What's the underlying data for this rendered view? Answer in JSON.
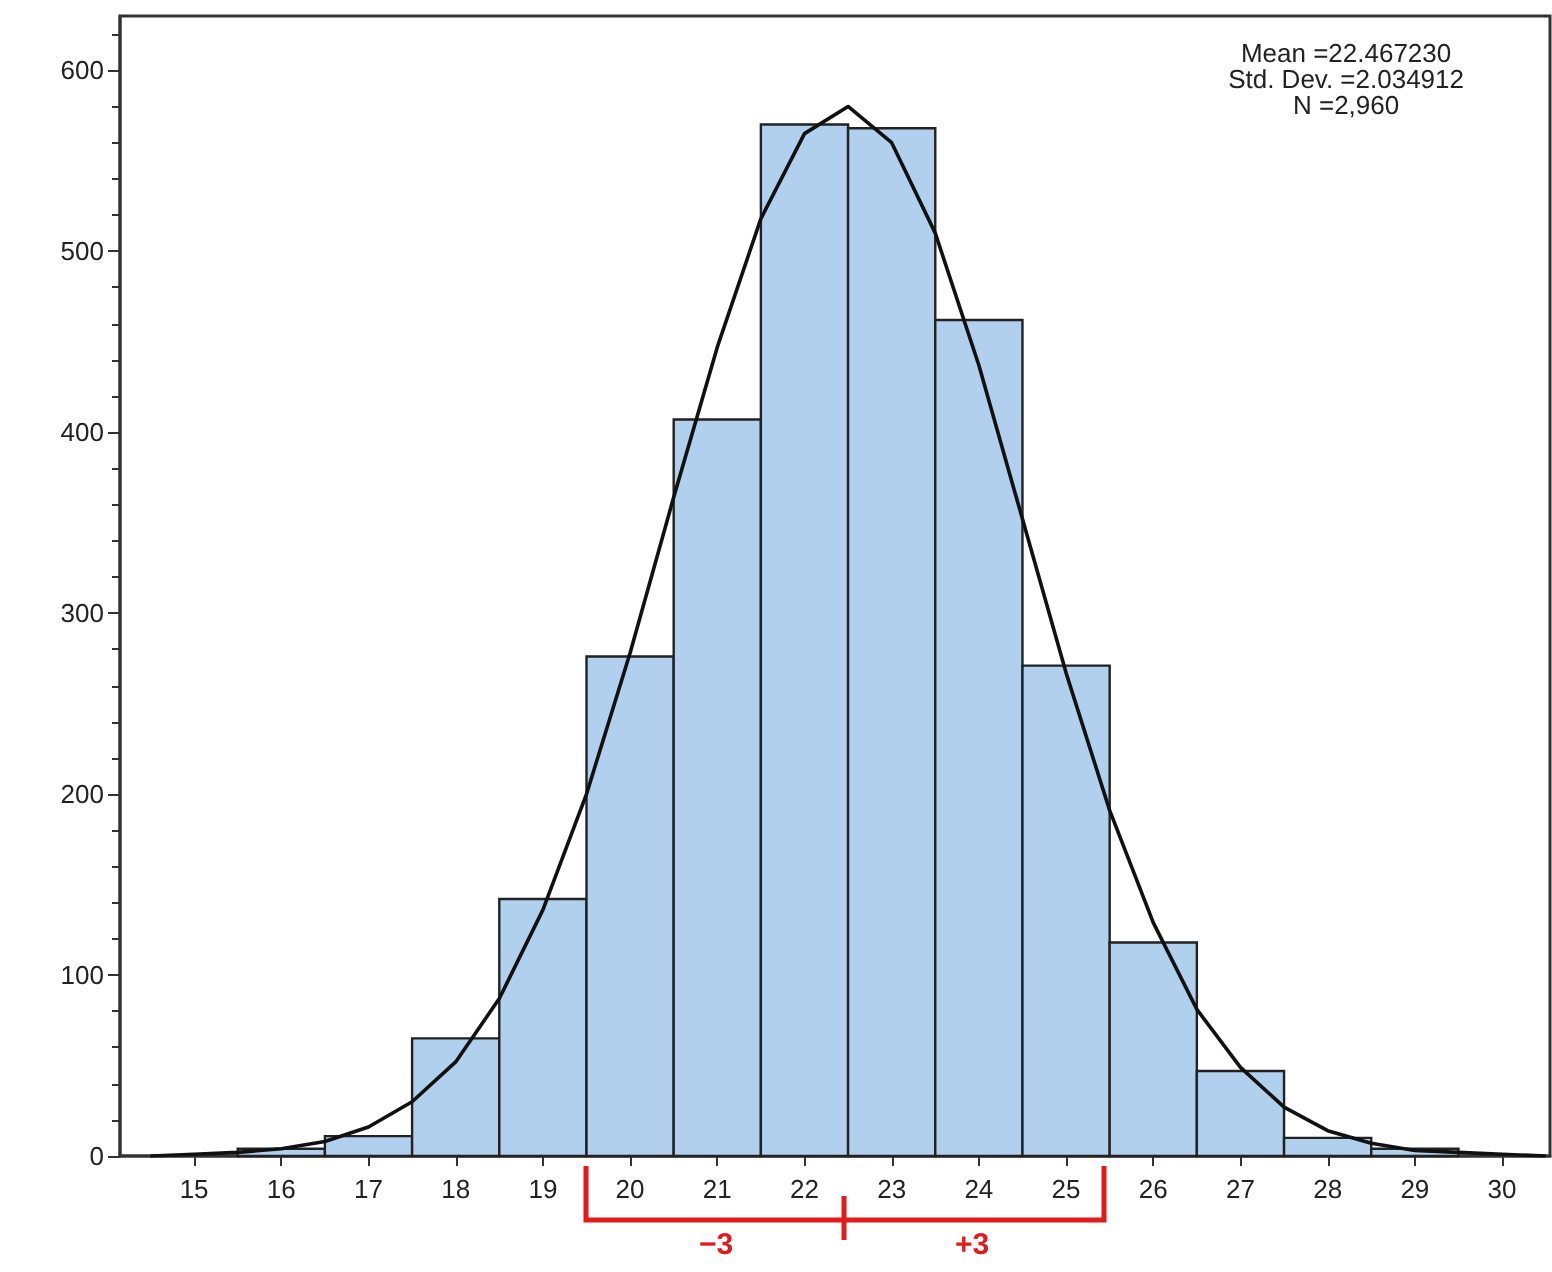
{
  "chart_data": {
    "type": "histogram",
    "bins": [
      14.5,
      15.5,
      16.5,
      17.5,
      18.5,
      19.5,
      20.5,
      21.5,
      22.5,
      23.5,
      24.5,
      25.5,
      26.5,
      27.5,
      28.5,
      29.5,
      30.5
    ],
    "values": [
      null,
      4,
      11,
      65,
      142,
      276,
      407,
      570,
      568,
      462,
      271,
      118,
      47,
      10,
      4,
      null
    ],
    "color": "#b0d0ee",
    "series": [
      {
        "type": "line",
        "color": "#111111",
        "x": [
          14.5,
          15,
          15.5,
          16,
          16.5,
          17,
          17.5,
          18,
          18.5,
          19,
          19.5,
          20,
          20.5,
          21,
          21.5,
          22,
          22.5,
          23,
          23.5,
          24,
          24.5,
          25,
          25.5,
          26,
          26.5,
          27,
          27.5,
          28,
          28.5,
          29,
          29.5,
          30,
          30.5
        ],
        "values": [
          0,
          1,
          2,
          4,
          8,
          16,
          30,
          52,
          87,
          136,
          200,
          278,
          364,
          447,
          518,
          565,
          580,
          560,
          510,
          437,
          352,
          267,
          191,
          129,
          81,
          49,
          27,
          14,
          7,
          3,
          2,
          1,
          0
        ]
      }
    ],
    "xlim": [
      14.15,
      30.55
    ],
    "xticks": [
      15,
      16,
      17,
      18,
      19,
      20,
      21,
      22,
      23,
      24,
      25,
      26,
      27,
      28,
      29,
      30
    ],
    "ylim": [
      0,
      630
    ],
    "yticks": [
      0,
      100,
      200,
      300,
      400,
      500,
      600
    ],
    "grid": false,
    "marker": "none",
    "line_style": "solid",
    "annotations": [
      "Mean =22.467230\nStd. Dev. =2.034912\nN =2,960",
      "−3",
      "+3"
    ]
  }
}
